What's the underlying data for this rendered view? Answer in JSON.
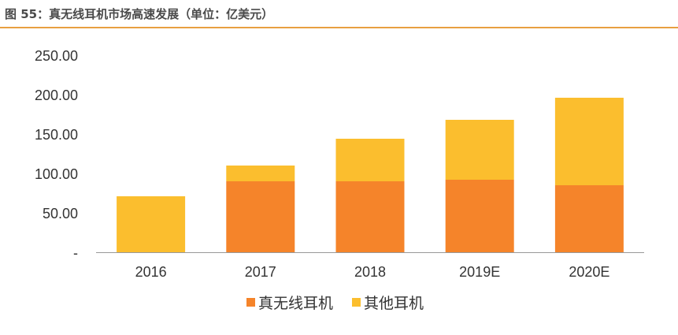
{
  "title": "图 55：真无线耳机市场高速发展（单位：亿美元）",
  "colors": {
    "accent": "#E8A040",
    "series1": "#F5842A",
    "series2": "#FBBE2E",
    "axis": "#999999"
  },
  "chart_data": {
    "type": "bar",
    "stacked": true,
    "categories": [
      "2016",
      "2017",
      "2018",
      "2019E",
      "2020E"
    ],
    "series": [
      {
        "name": "真无线耳机",
        "values": [
          0,
          90,
          90,
          92,
          85
        ]
      },
      {
        "name": "其他耳机",
        "values": [
          71,
          20,
          54,
          76,
          111
        ]
      }
    ],
    "ylim": [
      0,
      250
    ],
    "yticks": [
      0,
      50,
      100,
      150,
      200,
      250
    ],
    "ytick_labels": [
      "-",
      "50.00",
      "100.00",
      "150.00",
      "200.00",
      "250.00"
    ],
    "grid": false,
    "legend": "bottom"
  }
}
